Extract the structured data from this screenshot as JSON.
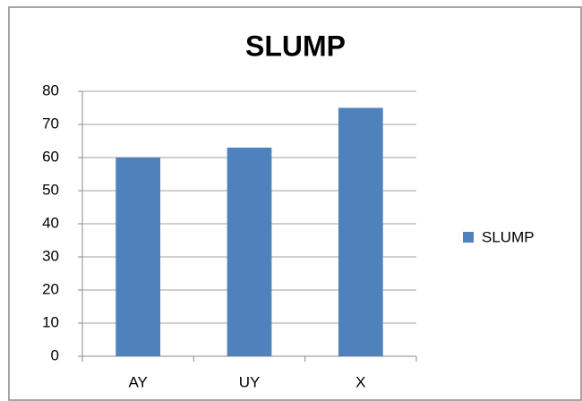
{
  "chart_data": {
    "type": "bar",
    "title": "SLUMP",
    "categories": [
      "AY",
      "UY",
      "X"
    ],
    "series": [
      {
        "name": "SLUMP",
        "color": "#4f81bd",
        "values": [
          60,
          63,
          75
        ]
      }
    ],
    "ylim": [
      0,
      80
    ],
    "yticks": [
      0,
      10,
      20,
      30,
      40,
      50,
      60,
      70,
      80
    ],
    "grid": true,
    "legend": "right"
  }
}
